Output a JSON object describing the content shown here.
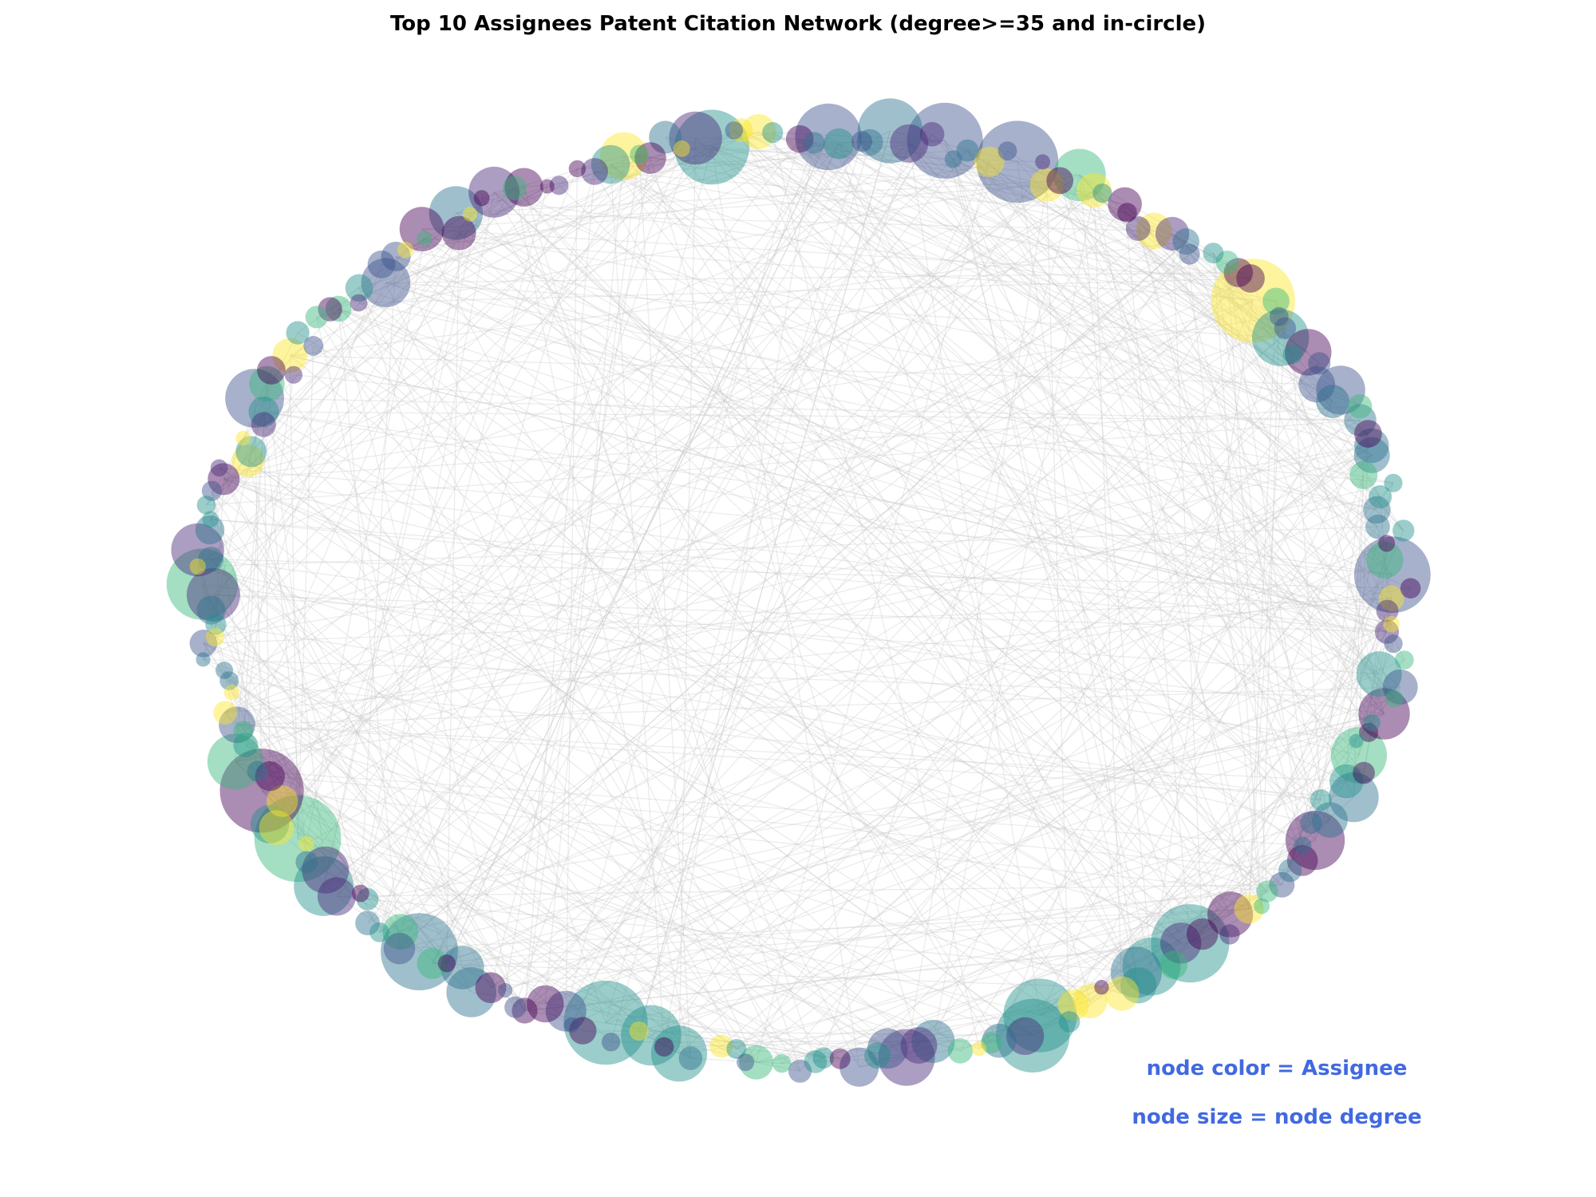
{
  "figure": {
    "title": "Top 10 Assignees Patent Citation Network (degree>=35 and in-circle)",
    "legend_color": "node color = Assignee",
    "legend_size": "node size = node degree",
    "legend_text_color": "#4169e1"
  },
  "chart_data": {
    "type": "network",
    "layout": "circular",
    "title": "Top 10 Assignees Patent Citation Network (degree>=35 and in-circle)",
    "node_color_encodes": "Assignee",
    "node_size_encodes": "node degree",
    "palette": "viridis",
    "edge_color": "#cccccc",
    "node_count_approx": 230,
    "edge_count_approx": 600
  }
}
